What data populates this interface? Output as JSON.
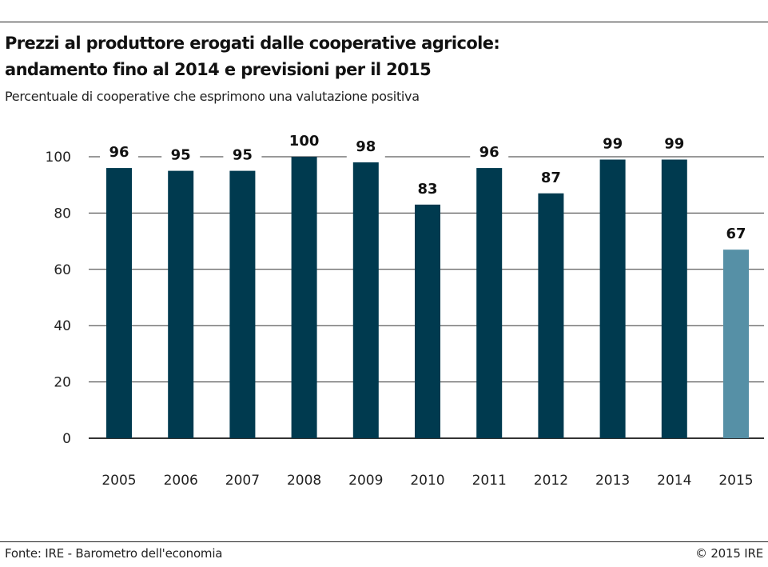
{
  "header": {
    "title_line_1": "Prezzi al produttore erogati dalle cooperative agricole:",
    "title_line_2": "andamento fino al 2014 e previsioni per il 2015",
    "subtitle": "Percentuale di cooperative che esprimono una valutazione positiva"
  },
  "footer": {
    "source": "Fonte: IRE - Barometro dell'economia",
    "copyright": "© 2015 IRE"
  },
  "chart_data": {
    "type": "bar",
    "categories": [
      "2005",
      "2006",
      "2007",
      "2008",
      "2009",
      "2010",
      "2011",
      "2012",
      "2013",
      "2014",
      "2015"
    ],
    "values": [
      96,
      95,
      95,
      100,
      98,
      83,
      96,
      87,
      99,
      99,
      67
    ],
    "value_labels": [
      "96",
      "95",
      "95",
      "100",
      "98",
      "83",
      "96",
      "87",
      "99",
      "99",
      "67"
    ],
    "ylim": [
      0,
      100
    ],
    "yticks": [
      0,
      20,
      40,
      60,
      80,
      100
    ],
    "ytick_labels": [
      "0",
      "20",
      "40",
      "60",
      "80",
      "100"
    ],
    "grid": true,
    "colors": {
      "bar": "#003a4f",
      "forecast_bar": "#5690a6",
      "grid": "#333333"
    },
    "forecast_categories": [
      "2015"
    ]
  }
}
